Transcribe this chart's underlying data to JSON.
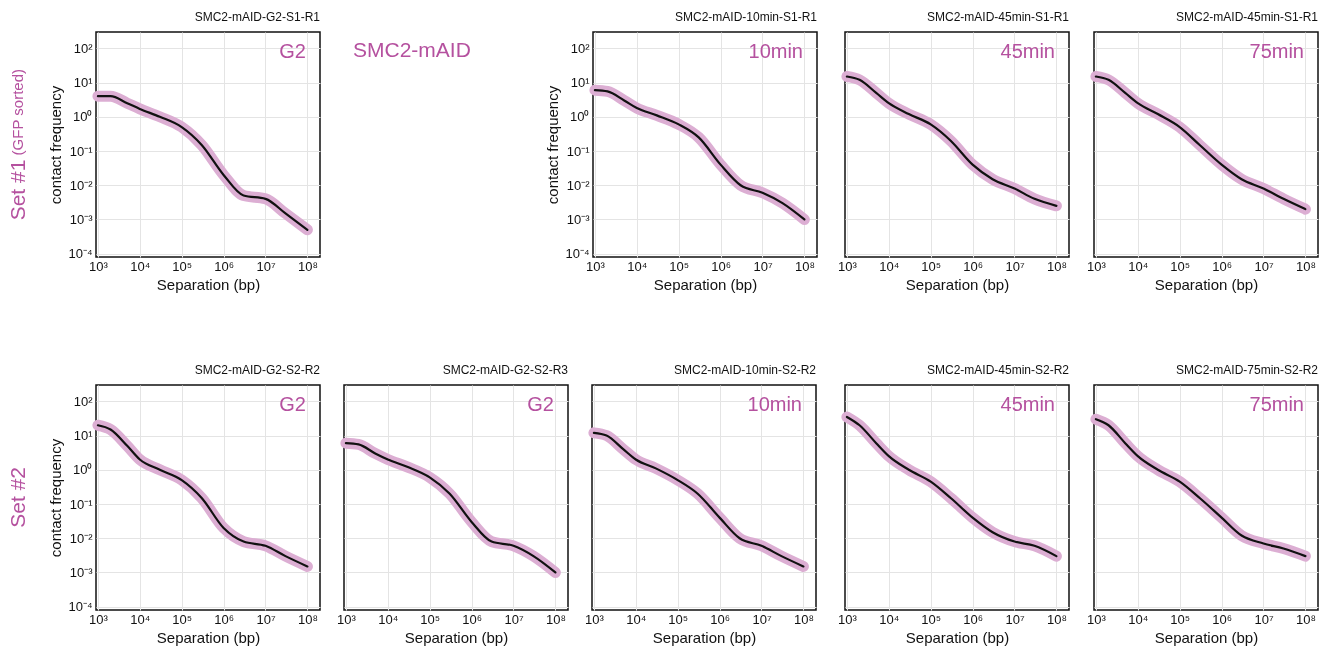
{
  "chart_data": [
    {
      "type": "line",
      "title": "SMC2-mAID-G2-S1-R1",
      "xlabel": "Separation (bp)",
      "ylabel": "contact frequency",
      "annotations": [
        "G2",
        "SMC2-mAID",
        "Set #1",
        "(GFP sorted)"
      ],
      "log": "xy",
      "grid": true,
      "x": [
        1000,
        2000,
        5000,
        10000,
        30000,
        100000,
        300000,
        1000000,
        3000000,
        10000000,
        30000000,
        100000000
      ],
      "xlim": [
        900,
        200000000
      ],
      "ylim": [
        8e-05,
        300
      ],
      "xticks": [
        {
          "value": 1000,
          "label": "10³"
        },
        {
          "value": 10000,
          "label": "10⁴"
        },
        {
          "value": 100000,
          "label": "10⁵"
        },
        {
          "value": 1000000,
          "label": "10⁶"
        },
        {
          "value": 10000000,
          "label": "10⁷"
        },
        {
          "value": 100000000,
          "label": "10⁸"
        }
      ],
      "yticks": [
        {
          "value": 0.0001,
          "label": "10⁻⁴"
        },
        {
          "value": 0.001,
          "label": "10⁻³"
        },
        {
          "value": 0.01,
          "label": "10⁻²"
        },
        {
          "value": 0.1,
          "label": "10⁻¹"
        },
        {
          "value": 1,
          "label": "10⁰"
        },
        {
          "value": 10,
          "label": "10¹"
        },
        {
          "value": 100,
          "label": "10²"
        }
      ],
      "series": [
        {
          "color": "#dcaed3",
          "values": [
            4,
            4,
            2.5,
            1.7,
            1.0,
            0.5,
            0.15,
            0.02,
            0.005,
            0.004,
            0.0015,
            0.0005
          ]
        },
        {
          "color": "#111111",
          "values": [
            4,
            4,
            2.5,
            1.7,
            1.0,
            0.5,
            0.15,
            0.02,
            0.005,
            0.004,
            0.0015,
            0.0005
          ]
        }
      ]
    },
    {
      "type": "line",
      "title": "SMC2-mAID-10min-S1-R1",
      "xlabel": "Separation (bp)",
      "ylabel": "contact frequency",
      "annotations": [
        "10min"
      ],
      "log": "xy",
      "grid": true,
      "x": [
        1000,
        2000,
        5000,
        10000,
        30000,
        100000,
        300000,
        1000000,
        3000000,
        10000000,
        30000000,
        100000000
      ],
      "xlim": [
        900,
        200000000
      ],
      "ylim": [
        8e-05,
        300
      ],
      "xticks": [
        {
          "value": 1000,
          "label": "10³"
        },
        {
          "value": 10000,
          "label": "10⁴"
        },
        {
          "value": 100000,
          "label": "10⁵"
        },
        {
          "value": 1000000,
          "label": "10⁶"
        },
        {
          "value": 10000000,
          "label": "10⁷"
        },
        {
          "value": 100000000,
          "label": "10⁸"
        }
      ],
      "yticks": [
        {
          "value": 0.0001,
          "label": "10⁻⁴"
        },
        {
          "value": 0.001,
          "label": "10⁻³"
        },
        {
          "value": 0.01,
          "label": "10⁻²"
        },
        {
          "value": 0.1,
          "label": "10⁻¹"
        },
        {
          "value": 1,
          "label": "10⁰"
        },
        {
          "value": 10,
          "label": "10¹"
        },
        {
          "value": 100,
          "label": "10²"
        }
      ],
      "series": [
        {
          "color": "#dcaed3",
          "values": [
            6,
            5.5,
            3,
            1.8,
            1.1,
            0.6,
            0.25,
            0.04,
            0.01,
            0.006,
            0.003,
            0.001
          ]
        },
        {
          "color": "#111111",
          "values": [
            6,
            5.5,
            3,
            1.8,
            1.1,
            0.6,
            0.25,
            0.04,
            0.01,
            0.006,
            0.003,
            0.001
          ]
        }
      ]
    },
    {
      "type": "line",
      "title": "SMC2-mAID-45min-S1-R1",
      "xlabel": "Separation (bp)",
      "annotations": [
        "45min"
      ],
      "log": "xy",
      "grid": true,
      "tick_labels": "x",
      "x": [
        1000,
        2000,
        5000,
        10000,
        30000,
        100000,
        300000,
        1000000,
        3000000,
        10000000,
        30000000,
        100000000
      ],
      "xlim": [
        900,
        200000000
      ],
      "ylim": [
        8e-05,
        300
      ],
      "xticks": [
        {
          "value": 1000,
          "label": "10³"
        },
        {
          "value": 10000,
          "label": "10⁴"
        },
        {
          "value": 100000,
          "label": "10⁵"
        },
        {
          "value": 1000000,
          "label": "10⁶"
        },
        {
          "value": 10000000,
          "label": "10⁷"
        },
        {
          "value": 100000000,
          "label": "10⁸"
        }
      ],
      "yticks": [
        {
          "value": 0.0001,
          "label": null
        },
        {
          "value": 0.001,
          "label": null
        },
        {
          "value": 0.01,
          "label": null
        },
        {
          "value": 0.1,
          "label": null
        },
        {
          "value": 1,
          "label": null
        },
        {
          "value": 10,
          "label": null
        },
        {
          "value": 100,
          "label": null
        }
      ],
      "series": [
        {
          "color": "#dcaed3",
          "values": [
            15,
            12,
            5,
            2.5,
            1.2,
            0.6,
            0.2,
            0.04,
            0.015,
            0.008,
            0.004,
            0.0025
          ]
        },
        {
          "color": "#111111",
          "values": [
            15,
            12,
            5,
            2.5,
            1.2,
            0.6,
            0.2,
            0.04,
            0.015,
            0.008,
            0.004,
            0.0025
          ]
        }
      ]
    },
    {
      "type": "line",
      "title": "SMC2-mAID-45min-S1-R1",
      "xlabel": "Separation (bp)",
      "annotations": [
        "75min"
      ],
      "log": "xy",
      "grid": true,
      "tick_labels": "x",
      "x": [
        1000,
        2000,
        5000,
        10000,
        30000,
        100000,
        300000,
        1000000,
        3000000,
        10000000,
        30000000,
        100000000
      ],
      "xlim": [
        900,
        200000000
      ],
      "ylim": [
        8e-05,
        300
      ],
      "xticks": [
        {
          "value": 1000,
          "label": "10³"
        },
        {
          "value": 10000,
          "label": "10⁴"
        },
        {
          "value": 100000,
          "label": "10⁵"
        },
        {
          "value": 1000000,
          "label": "10⁶"
        },
        {
          "value": 10000000,
          "label": "10⁷"
        },
        {
          "value": 100000000,
          "label": "10⁸"
        }
      ],
      "yticks": [
        {
          "value": 0.0001,
          "label": null
        },
        {
          "value": 0.001,
          "label": null
        },
        {
          "value": 0.01,
          "label": null
        },
        {
          "value": 0.1,
          "label": null
        },
        {
          "value": 1,
          "label": null
        },
        {
          "value": 10,
          "label": null
        },
        {
          "value": 100,
          "label": null
        }
      ],
      "series": [
        {
          "color": "#dcaed3",
          "values": [
            15,
            12,
            5,
            2.5,
            1.2,
            0.5,
            0.15,
            0.04,
            0.015,
            0.008,
            0.004,
            0.002
          ]
        },
        {
          "color": "#111111",
          "values": [
            15,
            12,
            5,
            2.5,
            1.2,
            0.5,
            0.15,
            0.04,
            0.015,
            0.008,
            0.004,
            0.002
          ]
        }
      ]
    },
    {
      "type": "line",
      "title": "SMC2-mAID-G2-S2-R2",
      "xlabel": "Separation (bp)",
      "ylabel": "contact frequency",
      "annotations": [
        "G2",
        "Set #2"
      ],
      "log": "xy",
      "grid": true,
      "x": [
        1000,
        2000,
        5000,
        10000,
        30000,
        100000,
        300000,
        1000000,
        3000000,
        10000000,
        30000000,
        100000000
      ],
      "xlim": [
        900,
        200000000
      ],
      "ylim": [
        8e-05,
        300
      ],
      "xticks": [
        {
          "value": 1000,
          "label": "10³"
        },
        {
          "value": 10000,
          "label": "10⁴"
        },
        {
          "value": 100000,
          "label": "10⁵"
        },
        {
          "value": 1000000,
          "label": "10⁶"
        },
        {
          "value": 10000000,
          "label": "10⁷"
        },
        {
          "value": 100000000,
          "label": "10⁸"
        }
      ],
      "yticks": [
        {
          "value": 0.0001,
          "label": "10⁻⁴"
        },
        {
          "value": 0.001,
          "label": "10⁻³"
        },
        {
          "value": 0.01,
          "label": "10⁻²"
        },
        {
          "value": 0.1,
          "label": "10⁻¹"
        },
        {
          "value": 1,
          "label": "10⁰"
        },
        {
          "value": 10,
          "label": "10¹"
        },
        {
          "value": 100,
          "label": "10²"
        }
      ],
      "series": [
        {
          "color": "#dcaed3",
          "values": [
            20,
            15,
            5,
            2,
            1.0,
            0.5,
            0.15,
            0.02,
            0.008,
            0.006,
            0.003,
            0.0015
          ]
        },
        {
          "color": "#111111",
          "values": [
            20,
            15,
            5,
            2,
            1.0,
            0.5,
            0.15,
            0.02,
            0.008,
            0.006,
            0.003,
            0.0015
          ]
        }
      ]
    },
    {
      "type": "line",
      "title": "SMC2-mAID-G2-S2-R3",
      "xlabel": "Separation (bp)",
      "annotations": [
        "G2"
      ],
      "log": "xy",
      "grid": true,
      "tick_labels": "x",
      "x": [
        1000,
        2000,
        5000,
        10000,
        30000,
        100000,
        300000,
        1000000,
        3000000,
        10000000,
        30000000,
        100000000
      ],
      "xlim": [
        900,
        200000000
      ],
      "ylim": [
        8e-05,
        300
      ],
      "xticks": [
        {
          "value": 1000,
          "label": "10³"
        },
        {
          "value": 10000,
          "label": "10⁴"
        },
        {
          "value": 100000,
          "label": "10⁵"
        },
        {
          "value": 1000000,
          "label": "10⁶"
        },
        {
          "value": 10000000,
          "label": "10⁷"
        },
        {
          "value": 100000000,
          "label": "10⁸"
        }
      ],
      "yticks": [
        {
          "value": 0.0001,
          "label": null
        },
        {
          "value": 0.001,
          "label": null
        },
        {
          "value": 0.01,
          "label": null
        },
        {
          "value": 0.1,
          "label": null
        },
        {
          "value": 1,
          "label": null
        },
        {
          "value": 10,
          "label": null
        },
        {
          "value": 100,
          "label": null
        }
      ],
      "series": [
        {
          "color": "#dcaed3",
          "values": [
            6,
            5.5,
            3,
            2,
            1.2,
            0.6,
            0.2,
            0.03,
            0.008,
            0.006,
            0.003,
            0.001
          ]
        },
        {
          "color": "#111111",
          "values": [
            6,
            5.5,
            3,
            2,
            1.2,
            0.6,
            0.2,
            0.03,
            0.008,
            0.006,
            0.003,
            0.001
          ]
        }
      ]
    },
    {
      "type": "line",
      "title": "SMC2-mAID-10min-S2-R2",
      "xlabel": "Separation (bp)",
      "annotations": [
        "10min"
      ],
      "log": "xy",
      "grid": true,
      "tick_labels": "x",
      "x": [
        1000,
        2000,
        5000,
        10000,
        30000,
        100000,
        300000,
        1000000,
        3000000,
        10000000,
        30000000,
        100000000
      ],
      "xlim": [
        900,
        200000000
      ],
      "ylim": [
        8e-05,
        300
      ],
      "xticks": [
        {
          "value": 1000,
          "label": "10³"
        },
        {
          "value": 10000,
          "label": "10⁴"
        },
        {
          "value": 100000,
          "label": "10⁵"
        },
        {
          "value": 1000000,
          "label": "10⁶"
        },
        {
          "value": 10000000,
          "label": "10⁷"
        },
        {
          "value": 100000000,
          "label": "10⁸"
        }
      ],
      "yticks": [
        {
          "value": 0.0001,
          "label": null
        },
        {
          "value": 0.001,
          "label": null
        },
        {
          "value": 0.01,
          "label": null
        },
        {
          "value": 0.1,
          "label": null
        },
        {
          "value": 1,
          "label": null
        },
        {
          "value": 10,
          "label": null
        },
        {
          "value": 100,
          "label": null
        }
      ],
      "series": [
        {
          "color": "#dcaed3",
          "values": [
            12,
            10,
            4,
            2,
            1.1,
            0.5,
            0.2,
            0.04,
            0.01,
            0.006,
            0.003,
            0.0015
          ]
        },
        {
          "color": "#111111",
          "values": [
            12,
            10,
            4,
            2,
            1.1,
            0.5,
            0.2,
            0.04,
            0.01,
            0.006,
            0.003,
            0.0015
          ]
        }
      ]
    },
    {
      "type": "line",
      "title": "SMC2-mAID-45min-S2-R2",
      "xlabel": "Separation (bp)",
      "annotations": [
        "45min"
      ],
      "log": "xy",
      "grid": true,
      "tick_labels": "x",
      "x": [
        1000,
        2000,
        5000,
        10000,
        30000,
        100000,
        300000,
        1000000,
        3000000,
        10000000,
        30000000,
        100000000
      ],
      "xlim": [
        900,
        200000000
      ],
      "ylim": [
        8e-05,
        300
      ],
      "xticks": [
        {
          "value": 1000,
          "label": "10³"
        },
        {
          "value": 10000,
          "label": "10⁴"
        },
        {
          "value": 100000,
          "label": "10⁵"
        },
        {
          "value": 1000000,
          "label": "10⁶"
        },
        {
          "value": 10000000,
          "label": "10⁷"
        },
        {
          "value": 100000000,
          "label": "10⁸"
        }
      ],
      "yticks": [
        {
          "value": 0.0001,
          "label": null
        },
        {
          "value": 0.001,
          "label": null
        },
        {
          "value": 0.01,
          "label": null
        },
        {
          "value": 0.1,
          "label": null
        },
        {
          "value": 1,
          "label": null
        },
        {
          "value": 10,
          "label": null
        },
        {
          "value": 100,
          "label": null
        }
      ],
      "series": [
        {
          "color": "#dcaed3",
          "values": [
            35,
            20,
            6,
            2.5,
            1.0,
            0.45,
            0.15,
            0.04,
            0.015,
            0.008,
            0.006,
            0.003
          ]
        },
        {
          "color": "#111111",
          "values": [
            35,
            20,
            6,
            2.5,
            1.0,
            0.45,
            0.15,
            0.04,
            0.015,
            0.008,
            0.006,
            0.003
          ]
        }
      ]
    },
    {
      "type": "line",
      "title": "SMC2-mAID-75min-S2-R2",
      "xlabel": "Separation (bp)",
      "annotations": [
        "75min"
      ],
      "log": "xy",
      "grid": true,
      "tick_labels": "x",
      "x": [
        1000,
        2000,
        5000,
        10000,
        30000,
        100000,
        300000,
        1000000,
        3000000,
        10000000,
        30000000,
        100000000
      ],
      "xlim": [
        900,
        200000000
      ],
      "ylim": [
        8e-05,
        300
      ],
      "xticks": [
        {
          "value": 1000,
          "label": "10³"
        },
        {
          "value": 10000,
          "label": "10⁴"
        },
        {
          "value": 100000,
          "label": "10⁵"
        },
        {
          "value": 1000000,
          "label": "10⁶"
        },
        {
          "value": 10000000,
          "label": "10⁷"
        },
        {
          "value": 100000000,
          "label": "10⁸"
        }
      ],
      "yticks": [
        {
          "value": 0.0001,
          "label": null
        },
        {
          "value": 0.001,
          "label": null
        },
        {
          "value": 0.01,
          "label": null
        },
        {
          "value": 0.1,
          "label": null
        },
        {
          "value": 1,
          "label": null
        },
        {
          "value": 10,
          "label": null
        },
        {
          "value": 100,
          "label": null
        }
      ],
      "series": [
        {
          "color": "#dcaed3",
          "values": [
            30,
            20,
            6,
            2.5,
            1.0,
            0.45,
            0.15,
            0.04,
            0.012,
            0.007,
            0.005,
            0.003
          ]
        },
        {
          "color": "#111111",
          "values": [
            30,
            20,
            6,
            2.5,
            1.0,
            0.45,
            0.15,
            0.04,
            0.012,
            0.007,
            0.005,
            0.003
          ]
        }
      ]
    }
  ]
}
